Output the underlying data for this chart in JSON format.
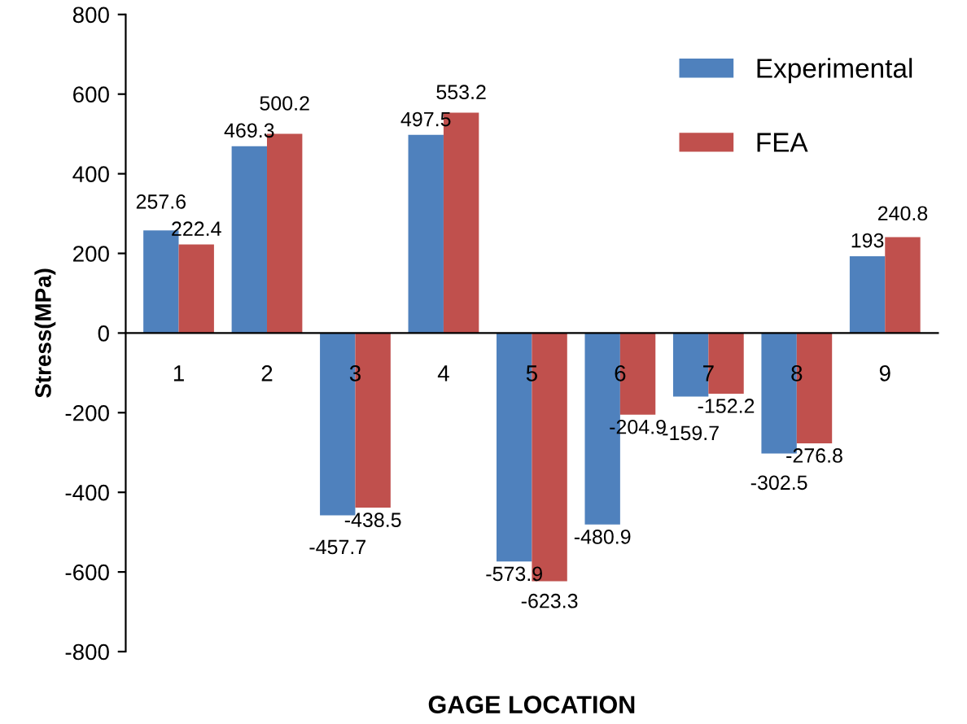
{
  "chart_data": {
    "type": "bar",
    "xlabel": "GAGE LOCATION",
    "ylabel": "Stress(MPa)",
    "categories": [
      "1",
      "2",
      "3",
      "4",
      "5",
      "6",
      "7",
      "8",
      "9"
    ],
    "series": [
      {
        "name": "Experimental",
        "color": "#4f81bd",
        "values": [
          257.6,
          469.3,
          -457.7,
          497.5,
          -573.9,
          -480.9,
          -159.7,
          -302.5,
          193
        ]
      },
      {
        "name": "FEA",
        "color": "#c0504d",
        "values": [
          222.4,
          500.2,
          -438.5,
          553.2,
          -623.3,
          -204.9,
          -152.2,
          -276.8,
          240.8
        ]
      }
    ],
    "ylim": [
      -800,
      800
    ],
    "yticks": [
      -800,
      -600,
      -400,
      -200,
      0,
      200,
      400,
      600,
      800
    ],
    "data_labels": true,
    "legend": "top right",
    "grid": false
  }
}
